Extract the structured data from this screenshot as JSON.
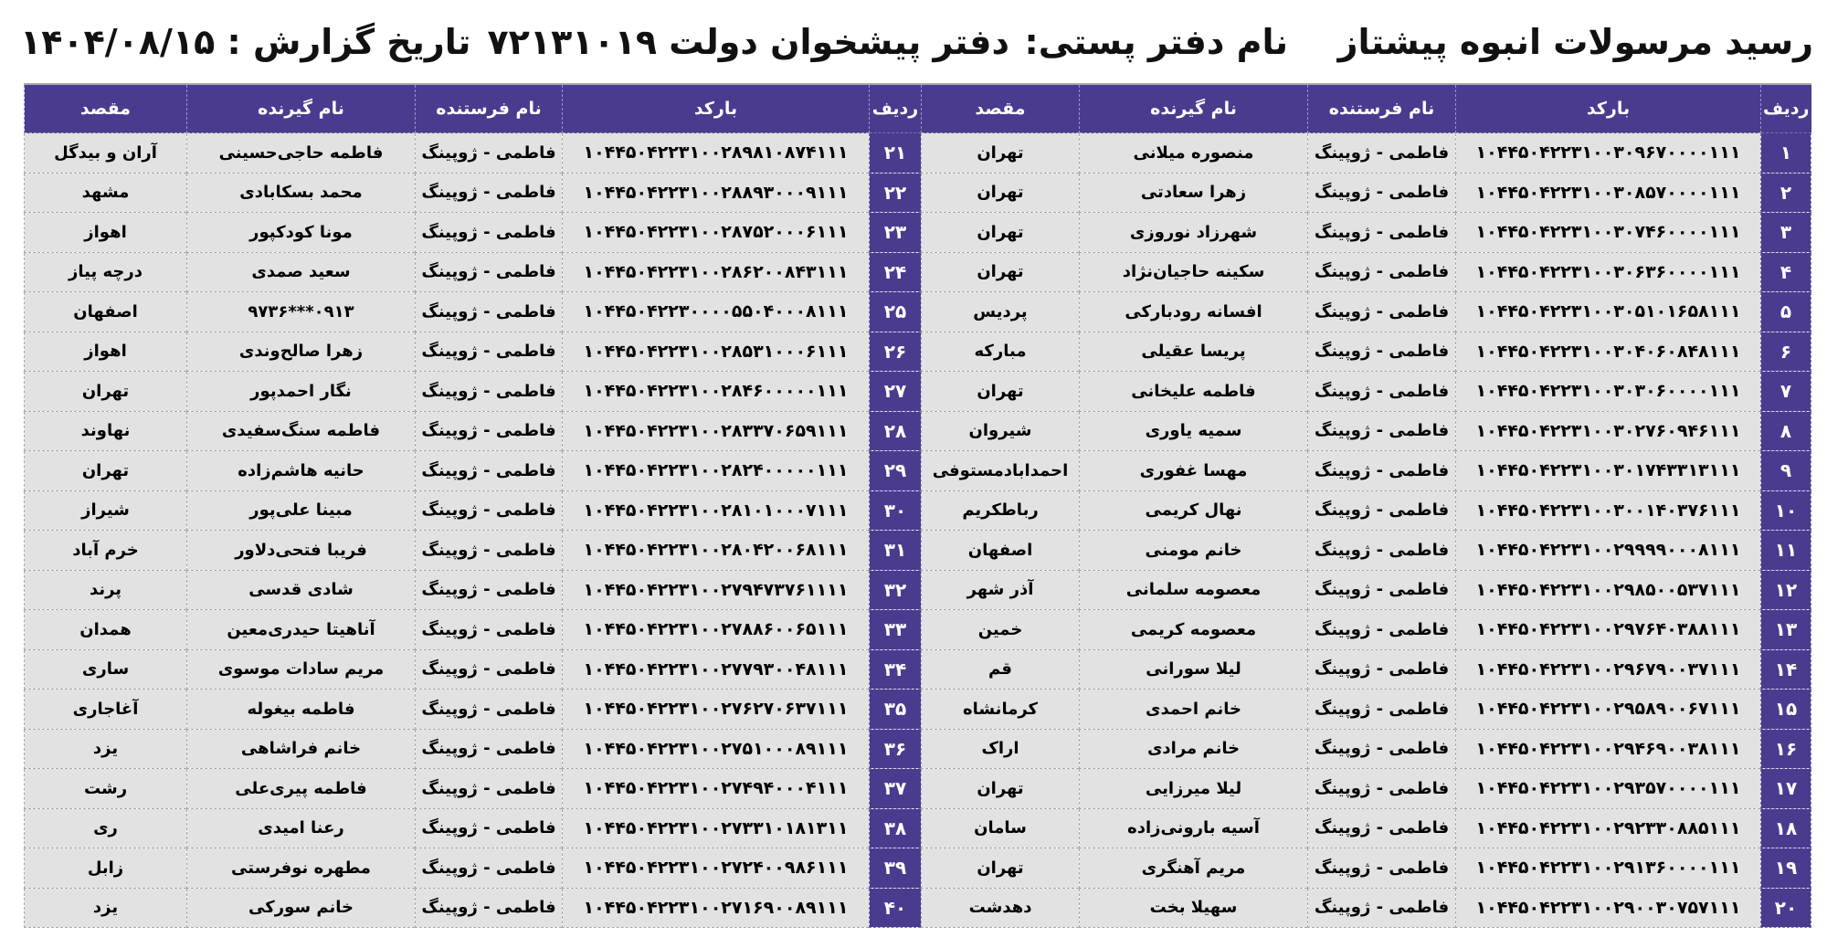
{
  "header": {
    "title": "رسید مرسولات انبوه  پیشتاز",
    "office_label": "نام دفتر پستی:",
    "office_name": "دفتر پیشخوان دولت ۷۲۱۳۱۰۱۹",
    "report_date": "تاریخ گزارش : ۱۴۰۴/۰۸/۱۵"
  },
  "columns": [
    "ردیف",
    "بارکد",
    "نام فرستنده",
    "نام گیرنده",
    "مقصد"
  ],
  "colors": {
    "header_bg": "#4b3b8f",
    "cell_bg": "#e2e2e2"
  },
  "rows": [
    {
      "no": "۱",
      "barcode": "۱۰۴۴۵۰۴۲۲۳۱۰۰۳۰۹۶۷۰۰۰۰۱۱۱",
      "sender": "فاطمی - ژوپینگ",
      "receiver": "منصوره میلانی",
      "dest": "تهران"
    },
    {
      "no": "۲",
      "barcode": "۱۰۴۴۵۰۴۲۲۳۱۰۰۳۰۸۵۷۰۰۰۰۱۱۱",
      "sender": "فاطمی - ژوپینگ",
      "receiver": "زهرا سعادتی",
      "dest": "تهران"
    },
    {
      "no": "۳",
      "barcode": "۱۰۴۴۵۰۴۲۲۳۱۰۰۳۰۷۴۶۰۰۰۰۱۱۱",
      "sender": "فاطمی - ژوپینگ",
      "receiver": "شهرزاد نوروزی",
      "dest": "تهران"
    },
    {
      "no": "۴",
      "barcode": "۱۰۴۴۵۰۴۲۲۳۱۰۰۳۰۶۳۶۰۰۰۰۱۱۱",
      "sender": "فاطمی - ژوپینگ",
      "receiver": "سکینه حاجیان‌نژاد",
      "dest": "تهران"
    },
    {
      "no": "۵",
      "barcode": "۱۰۴۴۵۰۴۲۲۳۱۰۰۳۰۵۱۰۱۶۵۸۱۱۱",
      "sender": "فاطمی - ژوپینگ",
      "receiver": "افسانه رودبارکی",
      "dest": "پردیس"
    },
    {
      "no": "۶",
      "barcode": "۱۰۴۴۵۰۴۲۲۳۱۰۰۳۰۴۰۶۰۸۴۸۱۱۱",
      "sender": "فاطمی - ژوپینگ",
      "receiver": "پریسا عقیلی",
      "dest": "مبارکه"
    },
    {
      "no": "۷",
      "barcode": "۱۰۴۴۵۰۴۲۲۳۱۰۰۳۰۳۰۶۰۰۰۰۱۱۱",
      "sender": "فاطمی - ژوپینگ",
      "receiver": "فاطمه علیخانی",
      "dest": "تهران"
    },
    {
      "no": "۸",
      "barcode": "۱۰۴۴۵۰۴۲۲۳۱۰۰۳۰۲۷۶۰۹۴۶۱۱۱",
      "sender": "فاطمی - ژوپینگ",
      "receiver": "سمیه یاوری",
      "dest": "شیروان"
    },
    {
      "no": "۹",
      "barcode": "۱۰۴۴۵۰۴۲۲۳۱۰۰۳۰۱۷۴۳۳۱۳۱۱۱",
      "sender": "فاطمی - ژوپینگ",
      "receiver": "مهسا غفوری",
      "dest": "احمدابادمستوفی"
    },
    {
      "no": "۱۰",
      "barcode": "۱۰۴۴۵۰۴۲۲۳۱۰۰۳۰۰۱۴۰۳۷۶۱۱۱",
      "sender": "فاطمی - ژوپینگ",
      "receiver": "نهال کریمی",
      "dest": "رباطکریم"
    },
    {
      "no": "۱۱",
      "barcode": "۱۰۴۴۵۰۴۲۲۳۱۰۰۲۹۹۹۹۰۰۰۸۱۱۱",
      "sender": "فاطمی - ژوپینگ",
      "receiver": "خانم مومنی",
      "dest": "اصفهان"
    },
    {
      "no": "۱۲",
      "barcode": "۱۰۴۴۵۰۴۲۲۳۱۰۰۲۹۸۵۰۰۵۳۷۱۱۱",
      "sender": "فاطمی - ژوپینگ",
      "receiver": "معصومه سلمانی",
      "dest": "آذر شهر"
    },
    {
      "no": "۱۳",
      "barcode": "۱۰۴۴۵۰۴۲۲۳۱۰۰۲۹۷۶۴۰۳۸۸۱۱۱",
      "sender": "فاطمی - ژوپینگ",
      "receiver": "معصومه کریمی",
      "dest": "خمین"
    },
    {
      "no": "۱۴",
      "barcode": "۱۰۴۴۵۰۴۲۲۳۱۰۰۲۹۶۷۹۰۰۳۷۱۱۱",
      "sender": "فاطمی - ژوپینگ",
      "receiver": "لیلا سورانی",
      "dest": "قم"
    },
    {
      "no": "۱۵",
      "barcode": "۱۰۴۴۵۰۴۲۲۳۱۰۰۲۹۵۸۹۰۰۶۷۱۱۱",
      "sender": "فاطمی - ژوپینگ",
      "receiver": "خانم احمدی",
      "dest": "کرمانشاه"
    },
    {
      "no": "۱۶",
      "barcode": "۱۰۴۴۵۰۴۲۲۳۱۰۰۲۹۴۶۹۰۰۳۸۱۱۱",
      "sender": "فاطمی - ژوپینگ",
      "receiver": "خانم مرادی",
      "dest": "اراک"
    },
    {
      "no": "۱۷",
      "barcode": "۱۰۴۴۵۰۴۲۲۳۱۰۰۲۹۳۵۷۰۰۰۰۱۱۱",
      "sender": "فاطمی - ژوپینگ",
      "receiver": "لیلا میرزایی",
      "dest": "تهران"
    },
    {
      "no": "۱۸",
      "barcode": "۱۰۴۴۵۰۴۲۲۳۱۰۰۲۹۲۳۳۰۸۸۵۱۱۱",
      "sender": "فاطمی - ژوپینگ",
      "receiver": "آسیه بارونی‌زاده",
      "dest": "سامان"
    },
    {
      "no": "۱۹",
      "barcode": "۱۰۴۴۵۰۴۲۲۳۱۰۰۲۹۱۳۶۰۰۰۰۱۱۱",
      "sender": "فاطمی - ژوپینگ",
      "receiver": "مریم آهنگری",
      "dest": "تهران"
    },
    {
      "no": "۲۰",
      "barcode": "۱۰۴۴۵۰۴۲۲۳۱۰۰۲۹۰۰۳۰۷۵۷۱۱۱",
      "sender": "فاطمی - ژوپینگ",
      "receiver": "سهیلا بخت",
      "dest": "دهدشت"
    },
    {
      "no": "۲۱",
      "barcode": "۱۰۴۴۵۰۴۲۲۳۱۰۰۲۸۹۸۱۰۸۷۴۱۱۱",
      "sender": "فاطمی - ژوپینگ",
      "receiver": "فاطمه حاجی‌حسینی",
      "dest": "آران و بیدگل"
    },
    {
      "no": "۲۲",
      "barcode": "۱۰۴۴۵۰۴۲۲۳۱۰۰۲۸۸۹۳۰۰۰۹۱۱۱",
      "sender": "فاطمی - ژوپینگ",
      "receiver": "محمد بسکابادی",
      "dest": "مشهد"
    },
    {
      "no": "۲۳",
      "barcode": "۱۰۴۴۵۰۴۲۲۳۱۰۰۲۸۷۵۲۰۰۰۶۱۱۱",
      "sender": "فاطمی - ژوپینگ",
      "receiver": "مونا کودکپور",
      "dest": "اهواز"
    },
    {
      "no": "۲۴",
      "barcode": "۱۰۴۴۵۰۴۲۲۳۱۰۰۲۸۶۲۰۰۸۴۳۱۱۱",
      "sender": "فاطمی - ژوپینگ",
      "receiver": "سعید صمدی",
      "dest": "درچه پیاز"
    },
    {
      "no": "۲۵",
      "barcode": "۱۰۴۴۵۰۴۲۲۳۰۰۰۰۵۵۰۴۰۰۰۸۱۱۱",
      "sender": "فاطمی - ژوپینگ",
      "receiver": "۰۹۱۳***۹۷۳۶",
      "dest": "اصفهان"
    },
    {
      "no": "۲۶",
      "barcode": "۱۰۴۴۵۰۴۲۲۳۱۰۰۲۸۵۳۱۰۰۰۶۱۱۱",
      "sender": "فاطمی - ژوپینگ",
      "receiver": "زهرا صالح‌وندی",
      "dest": "اهواز"
    },
    {
      "no": "۲۷",
      "barcode": "۱۰۴۴۵۰۴۲۲۳۱۰۰۲۸۴۶۰۰۰۰۰۱۱۱",
      "sender": "فاطمی - ژوپینگ",
      "receiver": "نگار احمدپور",
      "dest": "تهران"
    },
    {
      "no": "۲۸",
      "barcode": "۱۰۴۴۵۰۴۲۲۳۱۰۰۲۸۳۳۷۰۶۵۹۱۱۱",
      "sender": "فاطمی - ژوپینگ",
      "receiver": "فاطمه سنگ‌سفیدی",
      "dest": "نهاوند"
    },
    {
      "no": "۲۹",
      "barcode": "۱۰۴۴۵۰۴۲۲۳۱۰۰۲۸۲۴۰۰۰۰۰۱۱۱",
      "sender": "فاطمی - ژوپینگ",
      "receiver": "حانیه هاشم‌زاده",
      "dest": "تهران"
    },
    {
      "no": "۳۰",
      "barcode": "۱۰۴۴۵۰۴۲۲۳۱۰۰۲۸۱۰۱۰۰۰۷۱۱۱",
      "sender": "فاطمی - ژوپینگ",
      "receiver": "مبینا علی‌پور",
      "dest": "شیراز"
    },
    {
      "no": "۳۱",
      "barcode": "۱۰۴۴۵۰۴۲۲۳۱۰۰۲۸۰۴۲۰۰۶۸۱۱۱",
      "sender": "فاطمی - ژوپینگ",
      "receiver": "فریبا فتحی‌دلاور",
      "dest": "خرم آباد"
    },
    {
      "no": "۳۲",
      "barcode": "۱۰۴۴۵۰۴۲۲۳۱۰۰۲۷۹۴۷۳۷۶۱۱۱۱",
      "sender": "فاطمی - ژوپینگ",
      "receiver": "شادی قدسی",
      "dest": "پرند"
    },
    {
      "no": "۳۳",
      "barcode": "۱۰۴۴۵۰۴۲۲۳۱۰۰۲۷۸۸۶۰۰۶۵۱۱۱",
      "sender": "فاطمی - ژوپینگ",
      "receiver": "آناهیتا حیدری‌معین",
      "dest": "همدان"
    },
    {
      "no": "۳۴",
      "barcode": "۱۰۴۴۵۰۴۲۲۳۱۰۰۲۷۷۹۳۰۰۴۸۱۱۱",
      "sender": "فاطمی - ژوپینگ",
      "receiver": "مریم سادات موسوی",
      "dest": "ساری"
    },
    {
      "no": "۳۵",
      "barcode": "۱۰۴۴۵۰۴۲۲۳۱۰۰۲۷۶۲۷۰۶۳۷۱۱۱",
      "sender": "فاطمی - ژوپینگ",
      "receiver": "فاطمه بیغوله",
      "dest": "آغاجاری"
    },
    {
      "no": "۳۶",
      "barcode": "۱۰۴۴۵۰۴۲۲۳۱۰۰۲۷۵۱۰۰۰۸۹۱۱۱",
      "sender": "فاطمی - ژوپینگ",
      "receiver": "خانم فراشاهی",
      "dest": "یزد"
    },
    {
      "no": "۳۷",
      "barcode": "۱۰۴۴۵۰۴۲۲۳۱۰۰۲۷۴۹۴۰۰۰۴۱۱۱",
      "sender": "فاطمی - ژوپینگ",
      "receiver": "فاطمه پیری‌علی",
      "dest": "رشت"
    },
    {
      "no": "۳۸",
      "barcode": "۱۰۴۴۵۰۴۲۲۳۱۰۰۲۷۳۳۱۰۱۸۱۳۱۱",
      "sender": "فاطمی - ژوپینگ",
      "receiver": "رعنا امیدی",
      "dest": "ری"
    },
    {
      "no": "۳۹",
      "barcode": "۱۰۴۴۵۰۴۲۲۳۱۰۰۲۷۲۴۰۰۹۸۶۱۱۱",
      "sender": "فاطمی - ژوپینگ",
      "receiver": "مطهره نوفرستی",
      "dest": "زابل"
    },
    {
      "no": "۴۰",
      "barcode": "۱۰۴۴۵۰۴۲۲۳۱۰۰۲۷۱۶۹۰۰۸۹۱۱۱",
      "sender": "فاطمی - ژوپینگ",
      "receiver": "خانم سورکی",
      "dest": "یزد"
    }
  ]
}
